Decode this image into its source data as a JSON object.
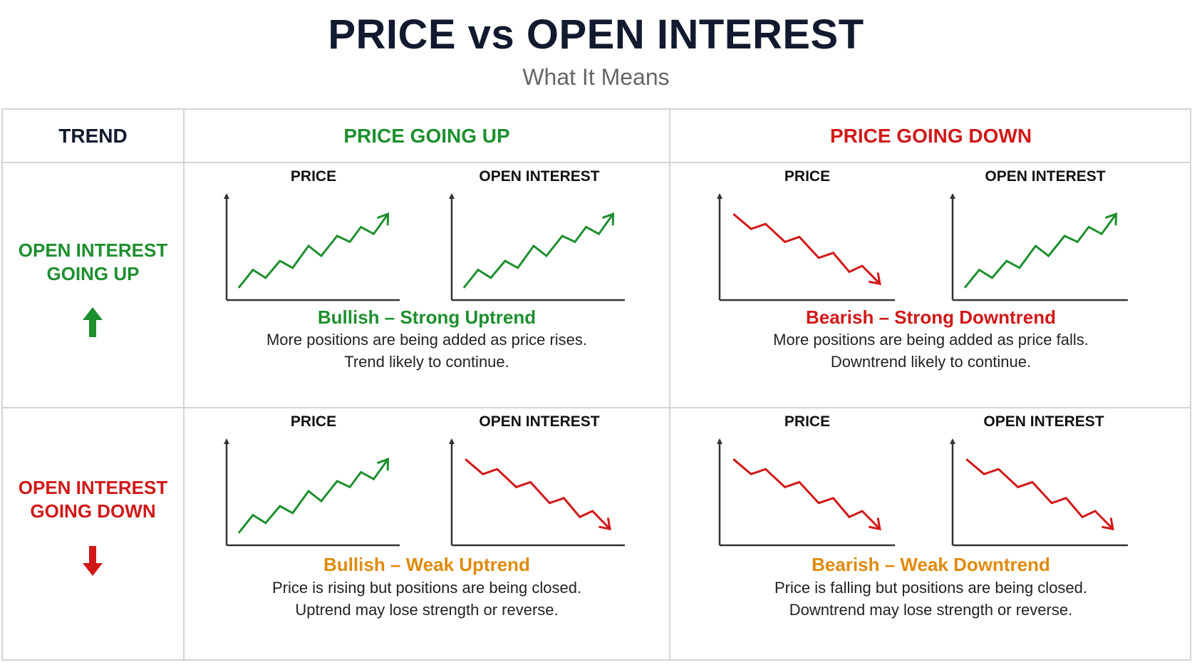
{
  "header": {
    "title": "PRICE vs OPEN INTEREST",
    "subtitle": "What It Means"
  },
  "table": {
    "col_headers": {
      "trend": "TREND",
      "price_up": "PRICE GOING UP",
      "price_down": "PRICE GOING DOWN"
    },
    "rows": [
      {
        "label_lines": [
          "OPEN INTEREST",
          "GOING UP"
        ],
        "icon": "arrow-up-icon",
        "color": "#1e8f2f"
      },
      {
        "label_lines": [
          "OPEN INTEREST",
          "GOING DOWN"
        ],
        "icon": "arrow-down-icon",
        "color": "#d11818"
      }
    ],
    "cells": [
      {
        "price_label": "PRICE",
        "oi_label": "OPEN INTEREST",
        "price_trend": "up",
        "oi_trend": "up",
        "title": "Bullish – Strong Uptrend",
        "title_color": "#1e8f2f",
        "desc_lines": [
          "More positions are being added as price rises.",
          "Trend likely to continue."
        ]
      },
      {
        "price_label": "PRICE",
        "oi_label": "OPEN INTEREST",
        "price_trend": "down",
        "oi_trend": "up",
        "title": "Bearish – Strong Downtrend",
        "title_color": "#d11818",
        "desc_lines": [
          "More positions are being added as price falls.",
          "Downtrend likely to continue."
        ]
      },
      {
        "price_label": "PRICE",
        "oi_label": "OPEN INTEREST",
        "price_trend": "up",
        "oi_trend": "down",
        "title": "Bullish – Weak Uptrend",
        "title_color": "#e08a0c",
        "desc_lines": [
          "Price is rising but positions are being closed.",
          "Uptrend may lose strength or reverse."
        ]
      },
      {
        "price_label": "PRICE",
        "oi_label": "OPEN INTEREST",
        "price_trend": "down",
        "oi_trend": "down",
        "title": "Bearish – Weak Downtrend",
        "title_color": "#e08a0c",
        "desc_lines": [
          "Price is falling but positions are being closed.",
          "Downtrend may lose strength or reverse."
        ]
      }
    ],
    "colors": {
      "up": "#1e8f2f",
      "down": "#d11818",
      "weak": "#e08a0c",
      "grid": "#d4d4d4",
      "axis": "#333333"
    }
  }
}
